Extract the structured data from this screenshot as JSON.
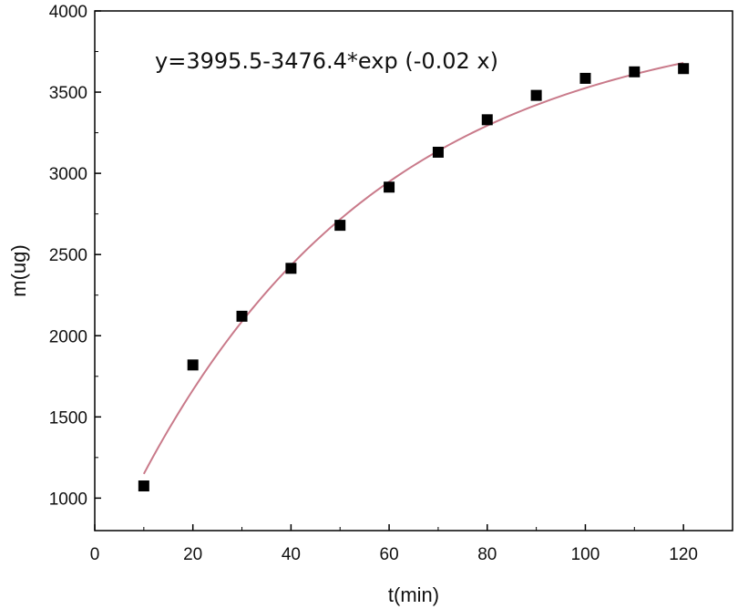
{
  "chart_data": {
    "type": "scatter",
    "xlabel": "t(min)",
    "ylabel": "m(ug)",
    "xlim": [
      0,
      130
    ],
    "ylim": [
      800,
      4000
    ],
    "x_ticks": [
      0,
      20,
      40,
      60,
      80,
      100,
      120
    ],
    "y_ticks": [
      1000,
      1500,
      2000,
      2500,
      3000,
      3500,
      4000
    ],
    "grid": false,
    "annotation": "y=3995.5-3476.4*exp (-0.02 x)",
    "fit": {
      "a": 3995.5,
      "b": 3476.4,
      "k": 0.02,
      "x_range": [
        10,
        120
      ],
      "color": "#c97a8a"
    },
    "series": [
      {
        "marker_color": "#000000",
        "x": [
          10,
          20,
          30,
          40,
          50,
          60,
          70,
          80,
          90,
          100,
          110,
          120
        ],
        "y": [
          1075,
          1820,
          2120,
          2415,
          2680,
          2915,
          3130,
          3330,
          3480,
          3585,
          3625,
          3645
        ]
      }
    ]
  }
}
